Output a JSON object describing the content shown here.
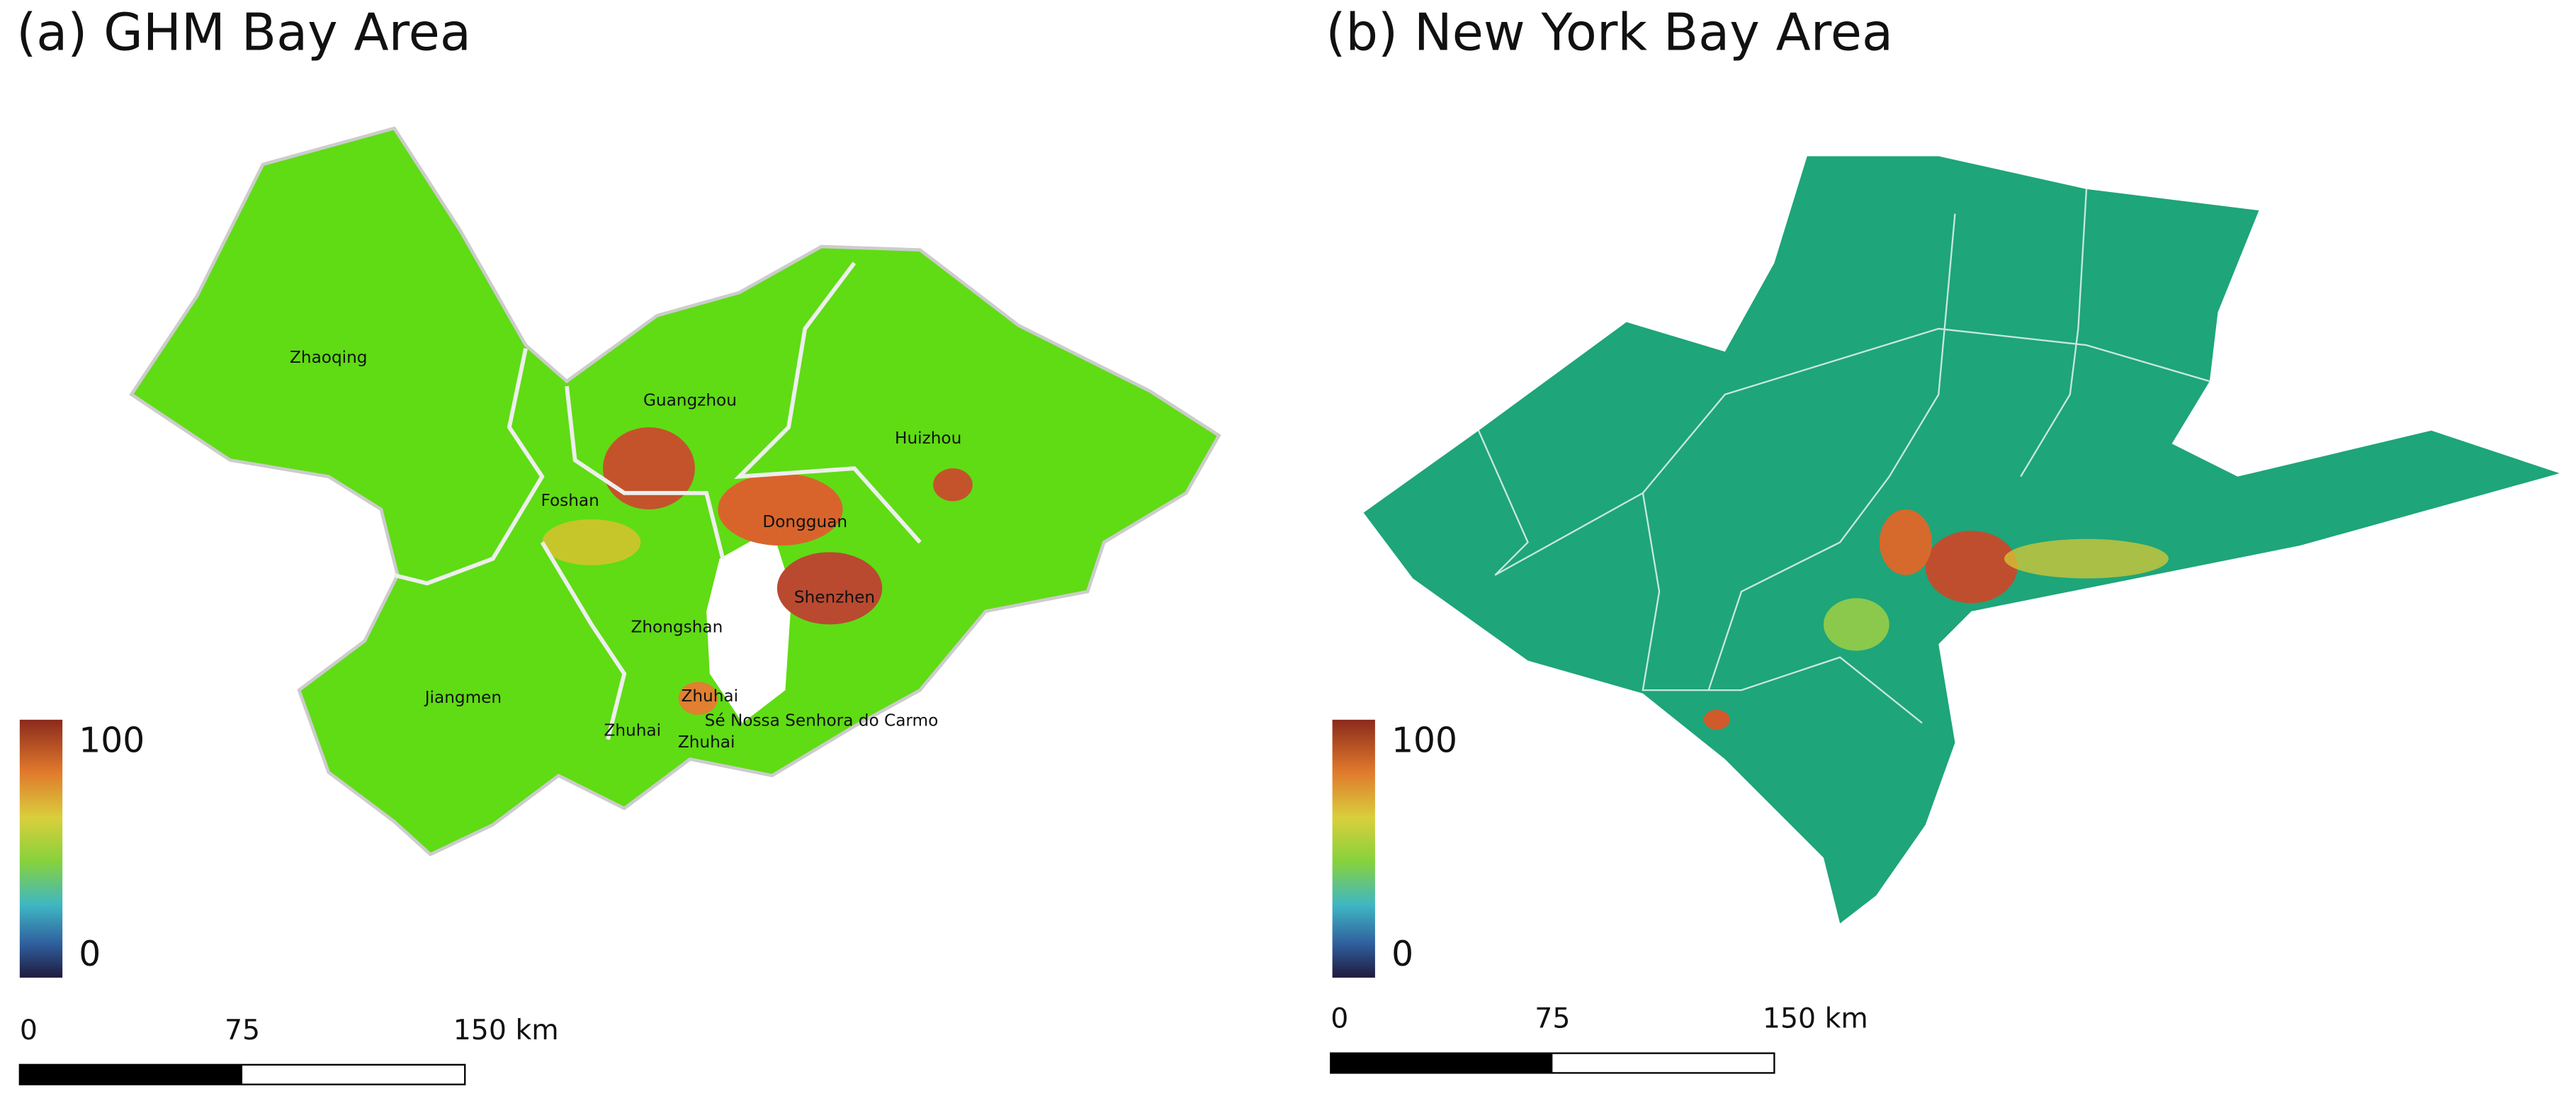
{
  "panels": [
    {
      "title": "(a) GHM Bay Area",
      "cities": [
        "Zhaoqing",
        "Guangzhou",
        "Huizhou",
        "Foshan",
        "Dongguan",
        "Shenzhen",
        "Zhongshan",
        "Jiangmen",
        "Zhuhai",
        "Zhuhai",
        "Zhuhai",
        "Sé Nossa Senhora do Carmo"
      ],
      "colorbar": {
        "max": 100,
        "min": 0
      },
      "scale_bar": {
        "xlim": [
          0,
          150
        ],
        "ticks": [
          0,
          75,
          {
            "value": 150,
            "label": "150 km"
          }
        ]
      }
    },
    {
      "title": "(b) New York Bay Area",
      "colorbar": {
        "max": 100,
        "min": 0
      },
      "scale_bar": {
        "xlim": [
          0,
          150
        ],
        "ticks": [
          0,
          75,
          {
            "value": 150,
            "label": "150 km"
          }
        ]
      }
    }
  ]
}
